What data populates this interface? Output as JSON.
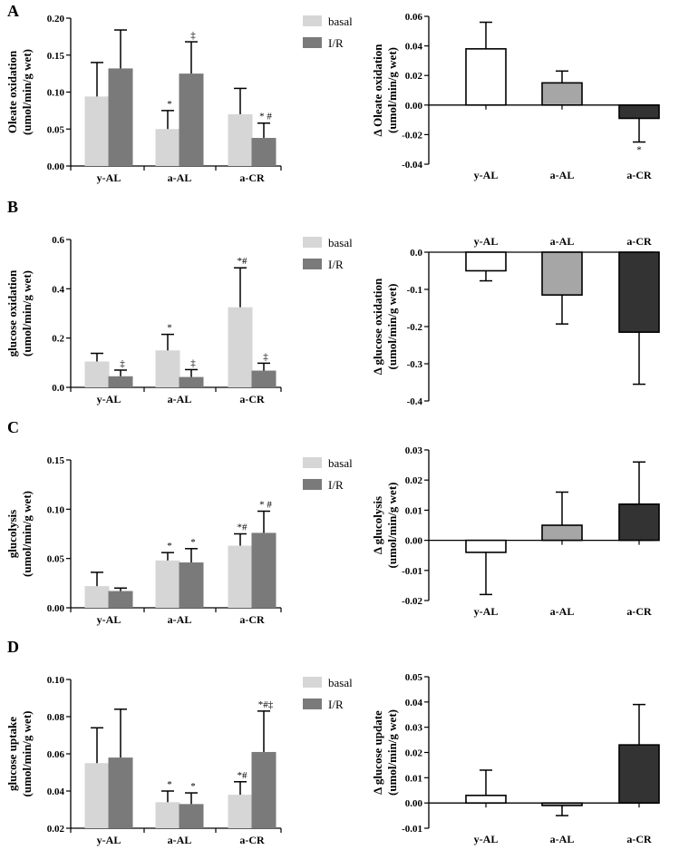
{
  "figure": {
    "colors": {
      "basal": "#d6d6d6",
      "ir": "#7a7a7a",
      "y-AL": "#ffffff",
      "a-AL": "#a6a6a6",
      "a-CR": "#333333",
      "axis": "#000000"
    },
    "panels": [
      {
        "label": "A"
      },
      {
        "label": "B"
      },
      {
        "label": "C"
      },
      {
        "label": "D"
      }
    ]
  },
  "chart_data": [
    {
      "type": "bar",
      "panel": "A",
      "side": "left",
      "ylabel_line1": "Oleate oxidation",
      "ylabel_line2": "(umol/min/g wet)",
      "ylim": [
        0,
        0.2
      ],
      "yticks": [
        0.0,
        0.05,
        0.1,
        0.15,
        0.2
      ],
      "ytick_labels": [
        "0.00",
        "0.05",
        "0.10",
        "0.15",
        "0.20"
      ],
      "categories": [
        "y-AL",
        "a-AL",
        "a-CR"
      ],
      "legend": [
        "basal",
        "I/R"
      ],
      "series": [
        {
          "name": "basal",
          "values": [
            0.094,
            0.05,
            0.07
          ],
          "errors": [
            0.046,
            0.025,
            0.035
          ],
          "annotations": [
            "",
            "*",
            ""
          ]
        },
        {
          "name": "I/R",
          "values": [
            0.132,
            0.125,
            0.038
          ],
          "errors": [
            0.052,
            0.043,
            0.02
          ],
          "annotations": [
            "",
            "‡",
            "* #"
          ]
        }
      ]
    },
    {
      "type": "bar",
      "panel": "A",
      "side": "right",
      "ylabel_line1": "Δ Oleate oxidation",
      "ylabel_line2": "(umol/min/g wet)",
      "ylim": [
        -0.04,
        0.06
      ],
      "yticks": [
        -0.04,
        -0.02,
        0.0,
        0.02,
        0.04,
        0.06
      ],
      "ytick_labels": [
        "-0.04",
        "-0.02",
        "0.00",
        "0.02",
        "0.04",
        "0.06"
      ],
      "categories": [
        "y-AL",
        "a-AL",
        "a-CR"
      ],
      "cat_position": "bottom",
      "values": [
        0.038,
        0.015,
        -0.009
      ],
      "errors": [
        0.018,
        0.008,
        0.016
      ],
      "annotations": [
        "",
        "",
        "*"
      ]
    },
    {
      "type": "bar",
      "panel": "B",
      "side": "left",
      "ylabel_line1": "glucose oxidation",
      "ylabel_line2": "(umol/min/g wet)",
      "ylim": [
        0,
        0.6
      ],
      "yticks": [
        0.0,
        0.2,
        0.4,
        0.6
      ],
      "ytick_labels": [
        "0.0",
        "0.2",
        "0.4",
        "0.6"
      ],
      "categories": [
        "y-AL",
        "a-AL",
        "a-CR"
      ],
      "legend": [
        "basal",
        "I/R"
      ],
      "series": [
        {
          "name": "basal",
          "values": [
            0.105,
            0.15,
            0.325
          ],
          "errors": [
            0.033,
            0.065,
            0.16
          ],
          "annotations": [
            "",
            "*",
            "*#"
          ]
        },
        {
          "name": "I/R",
          "values": [
            0.045,
            0.042,
            0.068
          ],
          "errors": [
            0.025,
            0.03,
            0.03
          ],
          "annotations": [
            "‡",
            "‡",
            "‡"
          ]
        }
      ]
    },
    {
      "type": "bar",
      "panel": "B",
      "side": "right",
      "ylabel_line1": "Δ glucose oxidation",
      "ylabel_line2": "(umol/min/g wet)",
      "ylim": [
        -0.4,
        0.0
      ],
      "yticks": [
        -0.4,
        -0.3,
        -0.2,
        -0.1,
        0.0
      ],
      "ytick_labels": [
        "-0.4",
        "-0.3",
        "-0.2",
        "-0.1",
        "0.0"
      ],
      "categories": [
        "y-AL",
        "a-AL",
        "a-CR"
      ],
      "cat_position": "top",
      "values": [
        -0.05,
        -0.115,
        -0.215
      ],
      "errors": [
        0.027,
        0.078,
        0.14
      ],
      "annotations": [
        "",
        "",
        ""
      ]
    },
    {
      "type": "bar",
      "panel": "C",
      "side": "left",
      "ylabel_line1": "glucolysis",
      "ylabel_line2": "(umol/min/g wet)",
      "ylim": [
        0,
        0.15
      ],
      "yticks": [
        0.0,
        0.05,
        0.1,
        0.15
      ],
      "ytick_labels": [
        "0.00",
        "0.05",
        "0.10",
        "0.15"
      ],
      "categories": [
        "y-AL",
        "a-AL",
        "a-CR"
      ],
      "legend": [
        "basal",
        "I/R"
      ],
      "series": [
        {
          "name": "basal",
          "values": [
            0.022,
            0.048,
            0.063
          ],
          "errors": [
            0.014,
            0.008,
            0.012
          ],
          "annotations": [
            "",
            "*",
            "*#"
          ]
        },
        {
          "name": "I/R",
          "values": [
            0.017,
            0.046,
            0.076
          ],
          "errors": [
            0.003,
            0.014,
            0.022
          ],
          "annotations": [
            "",
            "*",
            "* #"
          ]
        }
      ]
    },
    {
      "type": "bar",
      "panel": "C",
      "side": "right",
      "ylabel_line1": "Δ glucolysis",
      "ylabel_line2": "(umol/min/g wet)",
      "ylim": [
        -0.02,
        0.03
      ],
      "yticks": [
        -0.02,
        -0.01,
        0.0,
        0.01,
        0.02,
        0.03
      ],
      "ytick_labels": [
        "-0.02",
        "-0.01",
        "0.00",
        "0.01",
        "0.02",
        "0.03"
      ],
      "categories": [
        "y-AL",
        "a-AL",
        "a-CR"
      ],
      "cat_position": "bottom",
      "values": [
        -0.004,
        0.005,
        0.012
      ],
      "errors": [
        0.014,
        0.011,
        0.014
      ],
      "annotations": [
        "",
        "",
        ""
      ]
    },
    {
      "type": "bar",
      "panel": "D",
      "side": "left",
      "ylabel_line1": "glucose uptake",
      "ylabel_line2": "(umol/min/g wet)",
      "ylim": [
        0.02,
        0.1
      ],
      "yticks": [
        0.02,
        0.04,
        0.06,
        0.08,
        0.1
      ],
      "ytick_labels": [
        "0.02",
        "0.04",
        "0.06",
        "0.08",
        "0.10"
      ],
      "categories": [
        "y-AL",
        "a-AL",
        "a-CR"
      ],
      "legend": [
        "basal",
        "I/R"
      ],
      "series": [
        {
          "name": "basal",
          "values": [
            0.055,
            0.034,
            0.038
          ],
          "errors": [
            0.019,
            0.006,
            0.007
          ],
          "annotations": [
            "",
            "*",
            "*#"
          ]
        },
        {
          "name": "I/R",
          "values": [
            0.058,
            0.033,
            0.061
          ],
          "errors": [
            0.026,
            0.006,
            0.022
          ],
          "annotations": [
            "",
            "*",
            "*#‡"
          ]
        }
      ]
    },
    {
      "type": "bar",
      "panel": "D",
      "side": "right",
      "ylabel_line1": "Δ glucose update",
      "ylabel_line2": "(umol/min/g wet)",
      "ylim": [
        -0.01,
        0.05
      ],
      "yticks": [
        -0.01,
        0.0,
        0.01,
        0.02,
        0.03,
        0.04,
        0.05
      ],
      "ytick_labels": [
        "-0.01",
        "0.00",
        "0.01",
        "0.02",
        "0.03",
        "0.04",
        "0.05"
      ],
      "categories": [
        "y-AL",
        "a-AL",
        "a-CR"
      ],
      "cat_position": "bottom",
      "values": [
        0.003,
        -0.001,
        0.023
      ],
      "errors": [
        0.01,
        0.004,
        0.016
      ],
      "annotations": [
        "",
        "",
        ""
      ]
    }
  ]
}
